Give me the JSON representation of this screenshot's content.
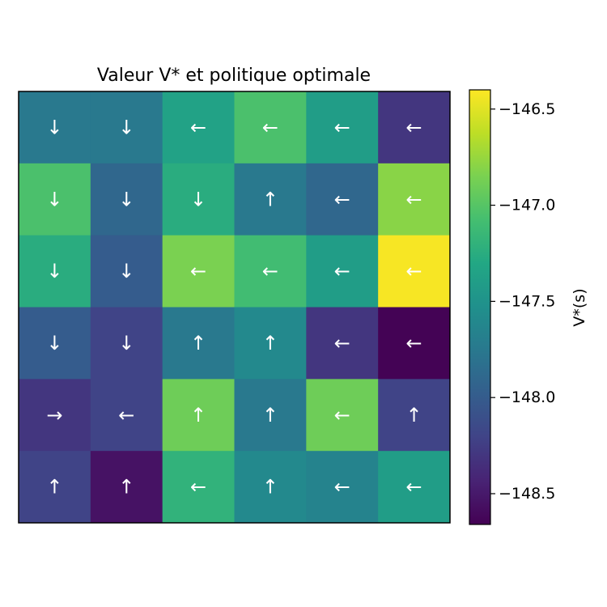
{
  "chart_data": {
    "type": "heatmap",
    "title": "Valeur V* et politique optimale",
    "colorbar_label": "V*(s)",
    "colormap": "viridis",
    "vmin": -148.66,
    "vmax": -146.4,
    "colorbar_ticks": [
      "−146.5",
      "−147.0",
      "−147.5",
      "−148.0",
      "−148.5"
    ],
    "colorbar_tick_values": [
      -146.5,
      -147.0,
      -147.5,
      -148.0,
      -148.5
    ],
    "xticks_shown": false,
    "yticks_shown": false,
    "rows": 6,
    "cols": 6,
    "values": [
      [
        -147.75,
        -147.75,
        -147.35,
        -147.05,
        -147.4,
        -148.3
      ],
      [
        -147.05,
        -147.9,
        -147.25,
        -147.75,
        -147.9,
        -146.8
      ],
      [
        -147.25,
        -148.0,
        -146.85,
        -147.1,
        -147.4,
        -146.42
      ],
      [
        -148.0,
        -148.2,
        -147.75,
        -147.6,
        -148.3,
        -148.65
      ],
      [
        -148.3,
        -148.2,
        -146.9,
        -147.75,
        -146.9,
        -148.2
      ],
      [
        -148.2,
        -148.55,
        -147.2,
        -147.6,
        -147.65,
        -147.4
      ]
    ],
    "policy": [
      [
        "↓",
        "↓",
        "←",
        "←",
        "←",
        "←"
      ],
      [
        "↓",
        "↓",
        "↓",
        "↑",
        "←",
        "←"
      ],
      [
        "↓",
        "↓",
        "←",
        "←",
        "←",
        "←"
      ],
      [
        "↓",
        "↓",
        "↑",
        "↑",
        "←",
        "←"
      ],
      [
        "→",
        "←",
        "↑",
        "↑",
        "←",
        "↑"
      ],
      [
        "↑",
        "↑",
        "←",
        "↑",
        "←",
        "←"
      ]
    ]
  }
}
